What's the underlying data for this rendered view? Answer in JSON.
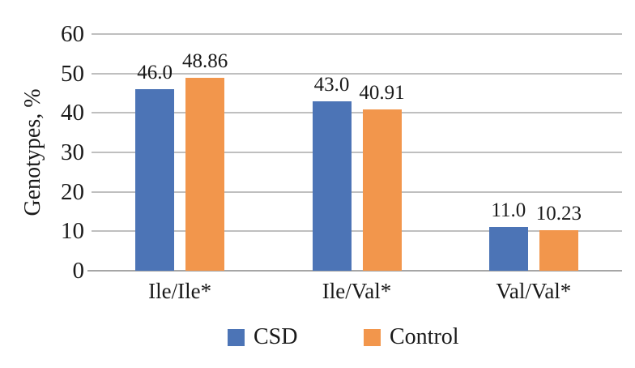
{
  "chart_data": {
    "type": "bar",
    "title": "",
    "xlabel": "",
    "ylabel": "Genotypes, %",
    "categories": [
      "Ile/Ile*",
      "Ile/Val*",
      "Val/Val*"
    ],
    "series": [
      {
        "name": "CSD",
        "color": "#4C74B6",
        "values": [
          46.0,
          43.0,
          11.0
        ],
        "value_labels": [
          "46.0",
          "43.0",
          "11.0"
        ]
      },
      {
        "name": "Control",
        "color": "#F2964C",
        "values": [
          48.86,
          40.91,
          10.23
        ],
        "value_labels": [
          "48.86",
          "40.91",
          "10.23"
        ]
      }
    ],
    "ylim": [
      0,
      60
    ],
    "y_ticks": [
      0,
      10,
      20,
      30,
      40,
      50,
      60
    ],
    "grid": true,
    "legend_position": "bottom",
    "colors": {
      "gridline": "#BFBFBF",
      "axis_line": "#A6A6A6",
      "text": "#1A1A1A"
    }
  }
}
